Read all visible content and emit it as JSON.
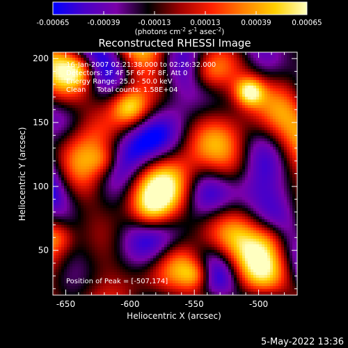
{
  "colorbar": {
    "tick_labels": [
      "-0.00065",
      "-0.00039",
      "-0.00013",
      "0.00013",
      "0.00039",
      "0.00065"
    ],
    "tick_values": [
      -0.00065,
      -0.00039,
      -0.00013,
      0.00013,
      0.00039,
      0.00065
    ],
    "vmin": -0.00065,
    "vmax": 0.00065,
    "units_prefix": "(photons cm",
    "units_exp1": "-2",
    "units_mid": " s",
    "units_exp2": "-1",
    "units_mid2": " asec",
    "units_exp3": "-2",
    "units_suffix": ")",
    "gradient": [
      "#0000ff",
      "#4a00c8",
      "#7a00a8",
      "#000000",
      "#a00000",
      "#ff2000",
      "#ff8000",
      "#ffd000",
      "#ffffc0"
    ]
  },
  "plot": {
    "title": "Reconstructed RHESSI Image",
    "xlabel": "Heliocentric X (arcsec)",
    "ylabel": "Heliocentric Y (arcsec)",
    "xlim": [
      -660,
      -470
    ],
    "ylim": [
      15,
      205
    ],
    "x_ticks": [
      -650,
      -600,
      -550,
      -500
    ],
    "x_tick_labels": [
      "-650",
      "-600",
      "-550",
      "-500"
    ],
    "y_ticks": [
      50,
      100,
      150,
      200
    ],
    "y_tick_labels": [
      "50",
      "100",
      "150",
      "200"
    ]
  },
  "annotations": {
    "time_range": "16-Jan-2007 02:21:38.000 to 02:26:32.000",
    "detectors": "Detectors: 3F 4F 5F 6F 7F 8F, Att 0",
    "energy_range": "Energy Range: 25.0 - 50.0 keV",
    "algorithm": "Clean     Total counts: 1.58E+04",
    "peak": "Position of Peak = [-507,174]"
  },
  "footer": {
    "date": "5-May-2022 13:36"
  },
  "image_features": {
    "peak": [
      -507,
      174
    ],
    "bright_sources": [
      {
        "x": -507,
        "y": 174,
        "sigma": 8,
        "amp": 1.0
      },
      {
        "x": -600,
        "y": 162,
        "sigma": 10,
        "amp": 0.85
      },
      {
        "x": -548,
        "y": 30,
        "sigma": 9,
        "amp": 0.8
      },
      {
        "x": -560,
        "y": 40,
        "sigma": 12,
        "amp": 0.55
      },
      {
        "x": -640,
        "y": 190,
        "sigma": 8,
        "amp": 0.45
      },
      {
        "x": -520,
        "y": 110,
        "sigma": 14,
        "amp": 0.45
      },
      {
        "x": -585,
        "y": 80,
        "sigma": 10,
        "amp": 0.4
      },
      {
        "x": -620,
        "y": 120,
        "sigma": 8,
        "amp": 0.35
      },
      {
        "x": -490,
        "y": 60,
        "sigma": 10,
        "amp": 0.4
      },
      {
        "x": -540,
        "y": 190,
        "sigma": 9,
        "amp": 0.35
      },
      {
        "x": -655,
        "y": 60,
        "sigma": 8,
        "amp": 0.3
      }
    ]
  }
}
